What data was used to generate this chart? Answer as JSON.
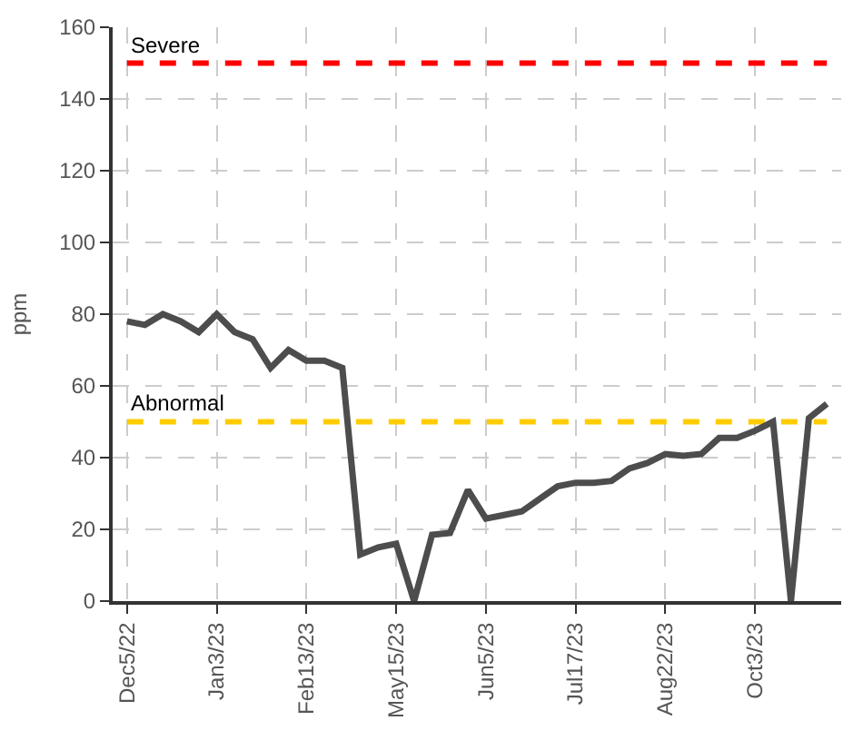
{
  "chart_data": {
    "type": "line",
    "ylabel": "ppm",
    "categories": [
      "Dec5/22",
      null,
      null,
      null,
      null,
      "Jan3/23",
      null,
      null,
      null,
      null,
      "Feb13/23",
      null,
      null,
      null,
      null,
      "May15/23",
      null,
      null,
      null,
      null,
      "Jun5/23",
      null,
      null,
      null,
      null,
      "Jul17/23",
      null,
      null,
      null,
      null,
      "Aug22/23",
      null,
      null,
      null,
      null,
      "Oct3/23",
      null,
      null,
      null,
      null
    ],
    "series": [
      {
        "color": "#4d4d4d",
        "values": [
          78,
          77,
          80,
          78,
          75,
          80,
          75,
          73,
          65,
          70,
          67,
          67,
          65,
          13,
          15,
          16,
          0,
          18.5,
          19,
          31,
          23,
          24,
          25,
          28.5,
          32,
          33,
          33,
          33.5,
          37,
          38.5,
          41,
          40.5,
          41,
          45.5,
          45.5,
          47.5,
          50,
          0,
          51,
          55
        ]
      }
    ],
    "ylim": [
      0,
      160
    ],
    "yticks": [
      0,
      20,
      40,
      60,
      80,
      100,
      120,
      140,
      160
    ],
    "ref_lines": [
      {
        "axis": "y",
        "value": 150,
        "label": "Severe",
        "color": "#ff0000",
        "line_style": "dashed"
      },
      {
        "axis": "y",
        "value": 50,
        "label": "Abnormal",
        "color": "#ffcc00",
        "line_style": "dashed"
      }
    ],
    "grid": true,
    "legend": false,
    "marker": "none",
    "line_style": "solid"
  }
}
